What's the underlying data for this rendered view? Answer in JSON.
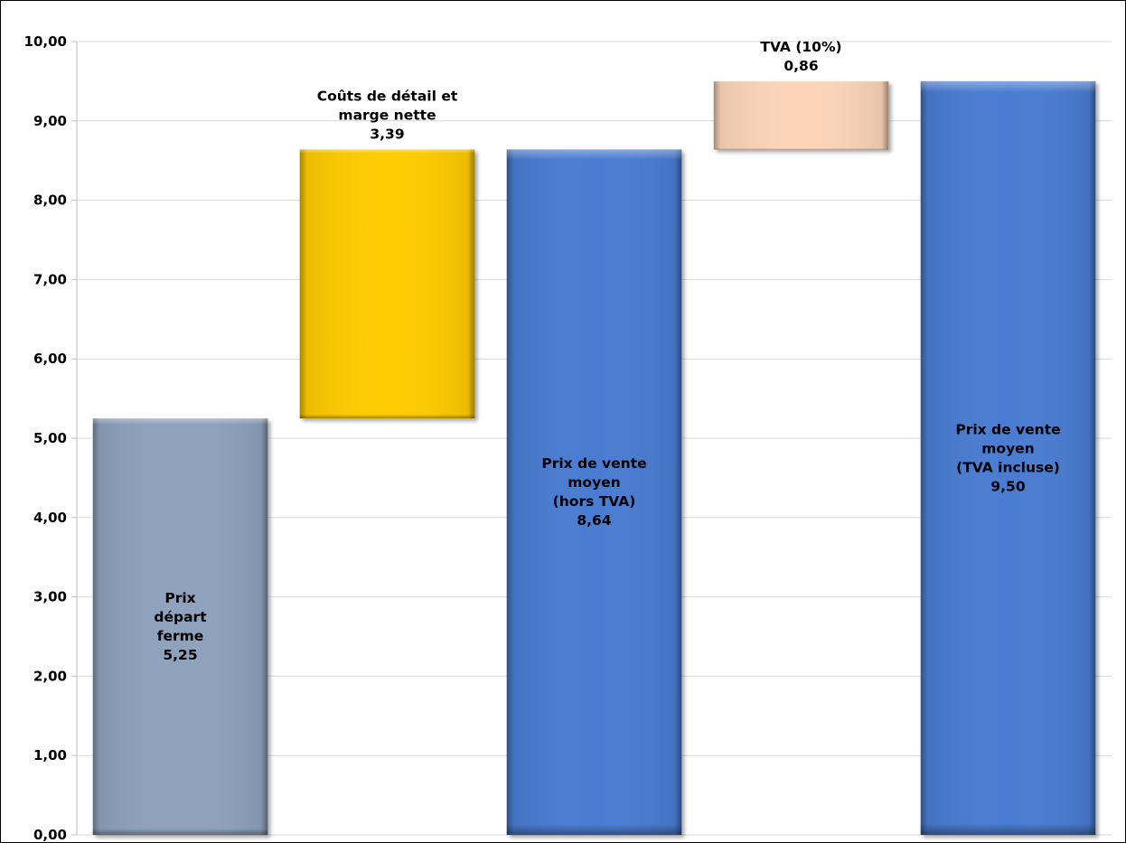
{
  "chart_data": {
    "type": "bar",
    "subtype": "waterfall",
    "title": "",
    "xlabel": "",
    "ylabel": "",
    "ylim": [
      0,
      10
    ],
    "y_ticks": [
      "0,00",
      "1,00",
      "2,00",
      "3,00",
      "4,00",
      "5,00",
      "6,00",
      "7,00",
      "8,00",
      "9,00",
      "10,00"
    ],
    "grid": true,
    "bars": [
      {
        "label_lines": [
          "Prix",
          "départ",
          "ferme"
        ],
        "value_label": "5,25",
        "base": 0,
        "value": 5.25,
        "color": "#8ea2bd",
        "label_position": "inside"
      },
      {
        "label_lines": [
          "Coûts de détail et",
          "marge nette"
        ],
        "value_label": "3,39",
        "base": 5.25,
        "value": 3.39,
        "color": "#ffcc00",
        "label_position": "above"
      },
      {
        "label_lines": [
          "Prix de vente",
          "moyen",
          "(hors TVA)"
        ],
        "value_label": "8,64",
        "base": 0,
        "value": 8.64,
        "color": "#4a7bd2",
        "label_position": "inside"
      },
      {
        "label_lines": [
          "TVA (10%)"
        ],
        "value_label": "0,86",
        "base": 8.64,
        "value": 0.86,
        "color": "#fcd5b8",
        "label_position": "above"
      },
      {
        "label_lines": [
          "Prix de vente",
          "moyen",
          "(TVA incluse)"
        ],
        "value_label": "9,50",
        "base": 0,
        "value": 9.5,
        "color": "#4a7bd2",
        "label_position": "inside"
      }
    ]
  }
}
